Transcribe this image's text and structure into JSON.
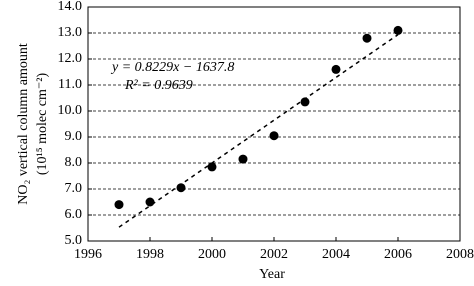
{
  "chart_data": {
    "type": "scatter",
    "x_label": "Year",
    "y_label": [
      "NO₂ vertical column amount",
      "(10¹⁵ molec cm⁻²)"
    ],
    "annotations": [
      "y = 0.8229x − 1637.8",
      "R² = 0.9639"
    ],
    "x": [
      1997,
      1998,
      1999,
      2000,
      2001,
      2002,
      2003,
      2004,
      2005,
      2006
    ],
    "values": [
      6.4,
      6.5,
      7.05,
      7.85,
      8.15,
      9.05,
      10.35,
      11.6,
      12.8,
      13.1
    ],
    "color": "#000000",
    "trendline": {
      "slope": 0.8229,
      "intercept": -1637.8
    },
    "xlim": [
      1996,
      2008
    ],
    "xticks": [
      1996,
      1998,
      2000,
      2002,
      2004,
      2006,
      2008
    ],
    "ylim": [
      5,
      14
    ],
    "yticks": [
      {
        "value": 5,
        "label": "5.0"
      },
      {
        "value": 6,
        "label": "6.0"
      },
      {
        "value": 7,
        "label": "7.0"
      },
      {
        "value": 8,
        "label": "8.0"
      },
      {
        "value": 9,
        "label": "9.0"
      },
      {
        "value": 10,
        "label": "10.0"
      },
      {
        "value": 11,
        "label": "11.0"
      },
      {
        "value": 12,
        "label": "12.0"
      },
      {
        "value": 13,
        "label": "13.0"
      },
      {
        "value": 14,
        "label": "14.0"
      }
    ],
    "grid": true
  }
}
